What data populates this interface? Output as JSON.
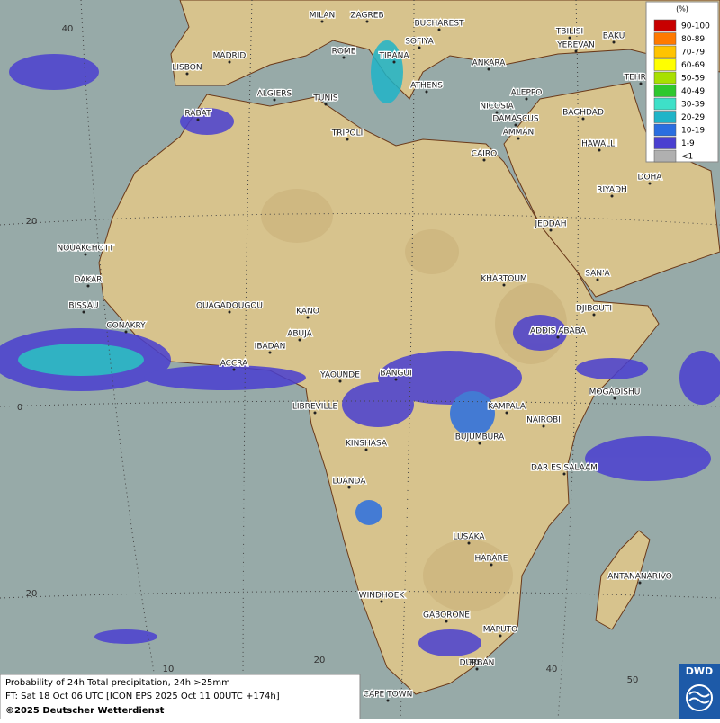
{
  "map": {
    "cities": [
      "MILAN",
      "ZAGREB",
      "BUCHAREST",
      "TBILISI",
      "BAKU",
      "MADRID",
      "ROME",
      "SOFIYA",
      "YEREVAN",
      "LISBON",
      "TIRANA",
      "ANKARA",
      "TEHRAN",
      "ALGIERS",
      "TUNIS",
      "ATHENS",
      "ALEPPO",
      "RABAT",
      "NICOSIA",
      "BAGHDAD",
      "TRIPOLI",
      "DAMASCUS",
      "AMMAN",
      "HAWALLI",
      "CAIRO",
      "DOHA",
      "RIYADH",
      "NOUAKCHOTT",
      "JEDDAH",
      "DAKAR",
      "KHARTOUM",
      "SAN'A",
      "BISSAU",
      "OUAGADOUGOU",
      "KANO",
      "DJIBOUTI",
      "CONAKRY",
      "ABUJA",
      "ADDIS ABABA",
      "IBADAN",
      "ACCRA",
      "YAOUNDE",
      "BANGUI",
      "MOGADISHU",
      "LIBREVILLE",
      "KAMPALA",
      "NAIROBI",
      "BUJUMBURA",
      "KINSHASA",
      "DAR ES SALAAM",
      "LUANDA",
      "LUSAKA",
      "HARARE",
      "ANTANANARIVO",
      "WINDHOEK",
      "GABORONE",
      "MAPUTO",
      "DURBAN",
      "CAPE TOWN"
    ],
    "lat_labels": [
      40,
      20,
      0,
      {
        "value": -20,
        "label": "20"
      }
    ],
    "lon_labels": [
      10,
      20,
      30,
      40,
      50
    ]
  },
  "legend": {
    "title": "(%)",
    "items": [
      {
        "label": "90-100",
        "color": "#c80000"
      },
      {
        "label": "80-89",
        "color": "#ff7a00"
      },
      {
        "label": "70-79",
        "color": "#ffc400"
      },
      {
        "label": "60-69",
        "color": "#ffff00"
      },
      {
        "label": "50-59",
        "color": "#a8e000"
      },
      {
        "label": "40-49",
        "color": "#2ec82e"
      },
      {
        "label": "30-39",
        "color": "#3ee0c8"
      },
      {
        "label": "20-29",
        "color": "#1fb4c8"
      },
      {
        "label": "10-19",
        "color": "#2a6ee0"
      },
      {
        "label": "1-9",
        "color": "#4a3fd0"
      },
      {
        "label": "<1",
        "color": "#b0b0b0"
      }
    ]
  },
  "caption": {
    "line1": "Probability of 24h Total precipitation, 24h >25mm",
    "line2": "FT: Sat 18 Oct 06 UTC [ICON EPS 2025 Oct 11 00UTC +174h]",
    "copyright": "©2025 Deutscher Wetterdienst"
  },
  "logo": "DWD"
}
